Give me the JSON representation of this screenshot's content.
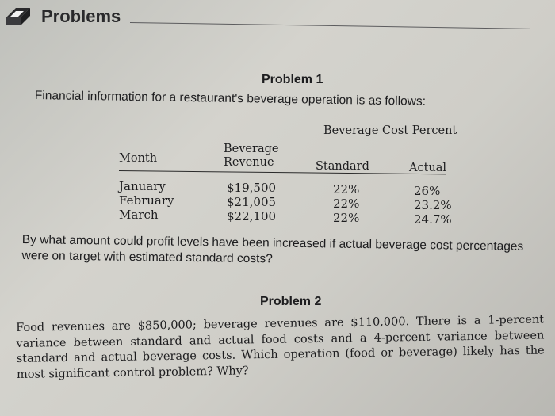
{
  "header": {
    "chapter_title": "Problems"
  },
  "problem1": {
    "title": "Problem 1",
    "intro": "Financial information for a restaurant's beverage operation is as follows:",
    "table": {
      "super_header": "Beverage Cost Percent",
      "headers": {
        "month": "Month",
        "revenue_line1": "Beverage",
        "revenue_line2": "Revenue",
        "standard": "Standard",
        "actual": "Actual"
      },
      "rows": [
        {
          "month": "January",
          "revenue": "$19,500",
          "standard": "22%",
          "actual": "26%"
        },
        {
          "month": "February",
          "revenue": "$21,005",
          "standard": "22%",
          "actual": "23.2%"
        },
        {
          "month": "March",
          "revenue": "$22,100",
          "standard": "22%",
          "actual": "24.7%"
        }
      ]
    },
    "question": "By what amount could profit levels have been increased if actual beverage cost percentages were on target with estimated standard costs?"
  },
  "problem2": {
    "title": "Problem 2",
    "body": "Food revenues are $850,000; beverage revenues are $110,000. There is a 1-percent variance between standard and actual food costs and a 4-percent variance between standard and actual beverage costs. Which operation (food or beverage) likely has the most significant control problem? Why?"
  },
  "colors": {
    "ink": "#1d1d1f",
    "paper": "#cfcec8"
  }
}
